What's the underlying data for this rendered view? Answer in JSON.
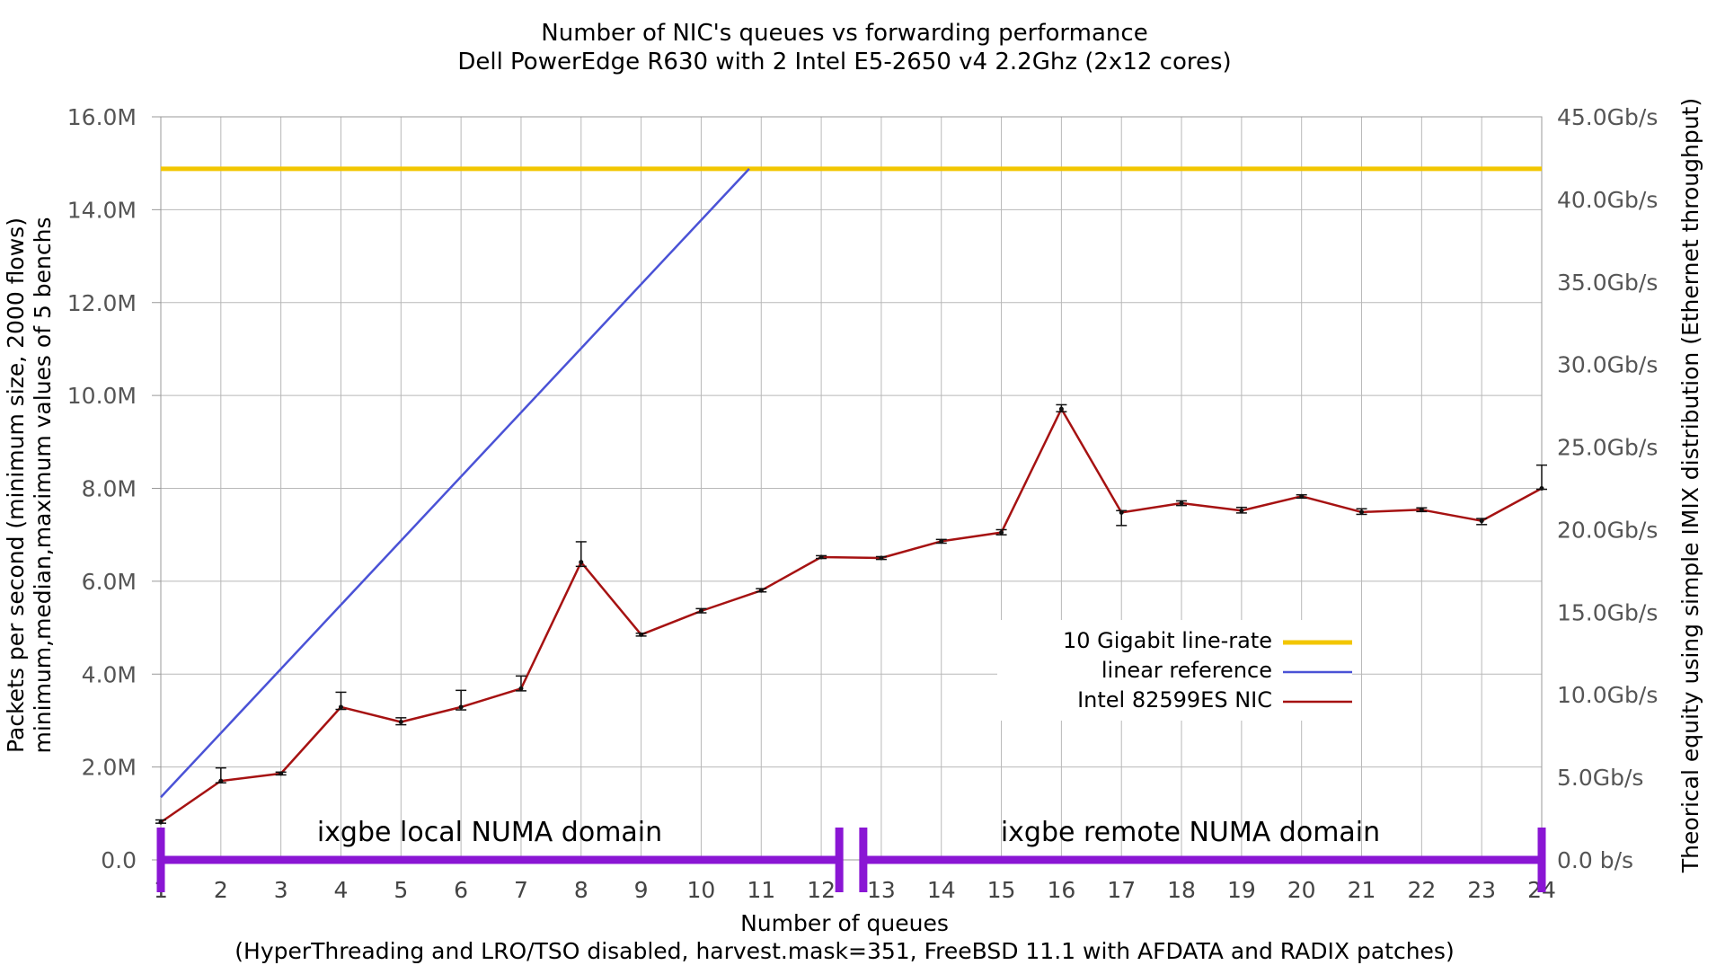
{
  "chart_data": {
    "type": "line",
    "title": "Number of NIC's queues vs forwarding performance",
    "subtitle": "Dell PowerEdge R630 with 2 Intel E5-2650 v4 2.2Ghz (2x12 cores)",
    "xlabel": "Number of queues",
    "xlabel2": "(HyperThreading and LRO/TSO disabled, harvest.mask=351, FreeBSD 11.1 with AFDATA and RADIX patches)",
    "ylabel": "Packets per second (minimum size, 2000 flows)",
    "ylabel2": "minimum,median,maximum values of 5 benchs",
    "y2label": "Theorical equity using simple IMIX distribution (Ethernet throughput)",
    "x": [
      1,
      2,
      3,
      4,
      5,
      6,
      7,
      8,
      9,
      10,
      11,
      12,
      13,
      14,
      15,
      16,
      17,
      18,
      19,
      20,
      21,
      22,
      23,
      24
    ],
    "xlim": [
      1,
      24
    ],
    "ylim": [
      0,
      16000000
    ],
    "y_ticks": [
      "0.0",
      "2.0M",
      "4.0M",
      "6.0M",
      "8.0M",
      "10.0M",
      "12.0M",
      "14.0M",
      "16.0M"
    ],
    "y2_ticks": [
      "0.0 b/s",
      "5.0Gb/s",
      "10.0Gb/s",
      "15.0Gb/s",
      "20.0Gb/s",
      "25.0Gb/s",
      "30.0Gb/s",
      "35.0Gb/s",
      "40.0Gb/s",
      "45.0Gb/s"
    ],
    "y2lim": [
      0,
      45
    ],
    "grid": true,
    "legend_position": "bottom-right",
    "series": [
      {
        "name": "10 Gigabit line-rate",
        "color": "#f2c600",
        "values": [
          14880000,
          14880000,
          14880000,
          14880000,
          14880000,
          14880000,
          14880000,
          14880000,
          14880000,
          14880000,
          14880000,
          14880000,
          14880000,
          14880000,
          14880000,
          14880000,
          14880000,
          14880000,
          14880000,
          14880000,
          14880000,
          14880000,
          14880000,
          14880000
        ]
      },
      {
        "name": "linear reference",
        "color": "#4a52d6",
        "x": [
          1,
          10.8
        ],
        "values": [
          1350000,
          14880000
        ]
      },
      {
        "name": "Intel 82599ES NIC",
        "color": "#a61212",
        "values": [
          810000,
          1700000,
          1860000,
          3290000,
          2970000,
          3290000,
          3690000,
          6410000,
          4850000,
          5360000,
          5800000,
          6520000,
          6500000,
          6860000,
          7050000,
          9710000,
          7480000,
          7680000,
          7520000,
          7830000,
          7490000,
          7540000,
          7300000,
          8000000
        ],
        "min": [
          790000,
          1660000,
          1830000,
          3240000,
          2910000,
          3230000,
          3640000,
          6320000,
          4820000,
          5320000,
          5770000,
          6490000,
          6470000,
          6820000,
          7000000,
          9650000,
          7200000,
          7630000,
          7470000,
          7790000,
          7440000,
          7500000,
          7220000,
          7980000
        ],
        "max": [
          860000,
          1980000,
          1890000,
          3610000,
          3060000,
          3650000,
          3960000,
          6850000,
          4880000,
          5410000,
          5840000,
          6550000,
          6530000,
          6900000,
          7110000,
          9800000,
          7520000,
          7730000,
          7590000,
          7860000,
          7560000,
          7580000,
          7350000,
          8500000
        ]
      }
    ],
    "annotations": [
      "ixgbe local NUMA domain",
      "ixgbe remote NUMA domain"
    ]
  }
}
